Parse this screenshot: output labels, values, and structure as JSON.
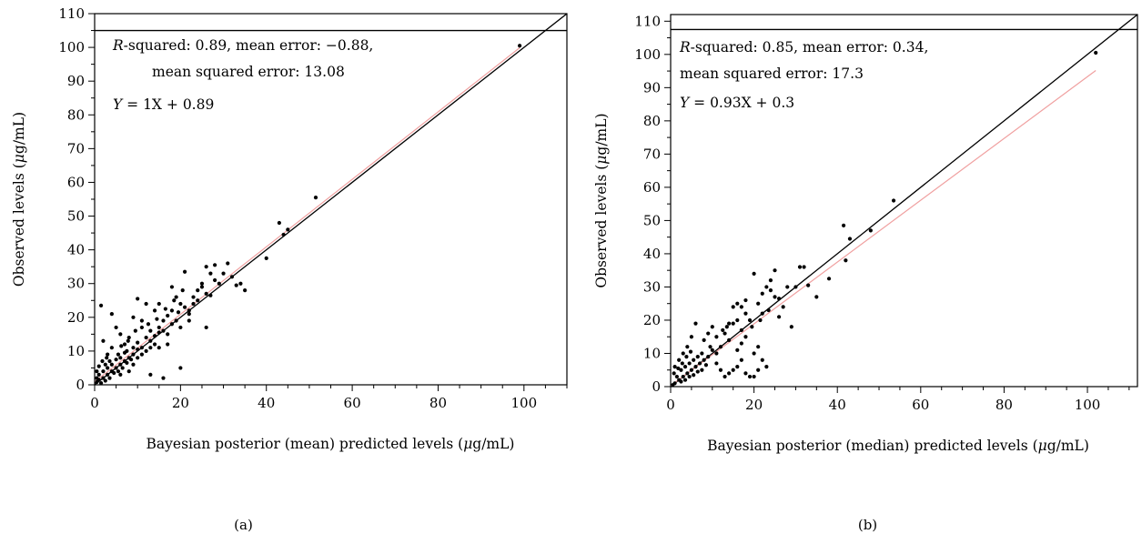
{
  "chart_data": [
    {
      "type": "scatter",
      "panel_label": "(a)",
      "xlabel": "Bayesian posterior (mean) predicted levels (μg/mL)",
      "ylabel": "Observed levels (μg/mL)",
      "xlim": [
        0,
        110
      ],
      "ylim": [
        0,
        110
      ],
      "x_ticks": [
        0,
        20,
        40,
        60,
        80,
        100
      ],
      "y_ticks": [
        0,
        10,
        20,
        30,
        40,
        50,
        60,
        70,
        80,
        90,
        100,
        110
      ],
      "annotations": {
        "line1": "R-squared: 0.89, mean error: −0.88,",
        "line2": "mean squared error: 13.08",
        "equation": "Y = 1X + 0.89"
      },
      "identity_line": {
        "slope": 1,
        "intercept": 0,
        "color": "#000000"
      },
      "fit_line": {
        "slope": 1,
        "intercept": 0.89,
        "color": "#f0a0a0"
      },
      "ref_hline": 105,
      "point_color": "#000000",
      "points": [
        [
          99,
          100.5
        ],
        [
          51.5,
          55.5
        ],
        [
          43,
          48
        ],
        [
          45,
          46
        ],
        [
          44,
          44.5
        ],
        [
          40,
          37.5
        ],
        [
          32,
          32
        ],
        [
          33,
          29.5
        ],
        [
          34,
          30
        ],
        [
          35,
          28
        ],
        [
          31,
          36
        ],
        [
          28,
          35.5
        ],
        [
          26,
          35
        ],
        [
          27,
          33
        ],
        [
          21,
          33.5
        ],
        [
          25,
          30
        ],
        [
          24,
          28
        ],
        [
          27,
          26.5
        ],
        [
          26,
          17
        ],
        [
          23,
          24
        ],
        [
          22,
          22
        ],
        [
          20,
          24
        ],
        [
          22,
          21
        ],
        [
          18,
          22
        ],
        [
          17,
          20.5
        ],
        [
          18,
          18
        ],
        [
          19,
          19
        ],
        [
          16,
          19
        ],
        [
          15,
          17
        ],
        [
          17,
          15
        ],
        [
          14,
          14.5
        ],
        [
          15,
          15.5
        ],
        [
          13,
          16
        ],
        [
          12,
          14
        ],
        [
          13,
          11
        ],
        [
          11,
          11
        ],
        [
          10,
          12.5
        ],
        [
          12,
          10
        ],
        [
          9,
          9
        ],
        [
          10,
          10.5
        ],
        [
          8,
          8
        ],
        [
          9,
          11
        ],
        [
          7,
          9.5
        ],
        [
          7,
          7
        ],
        [
          6,
          8
        ],
        [
          6,
          6
        ],
        [
          5,
          7.5
        ],
        [
          5,
          5
        ],
        [
          4,
          6
        ],
        [
          4,
          4
        ],
        [
          3,
          5
        ],
        [
          3,
          3
        ],
        [
          2,
          4
        ],
        [
          2,
          2
        ],
        [
          1,
          3
        ],
        [
          1,
          1.5
        ],
        [
          0.5,
          2
        ],
        [
          0.5,
          0.8
        ],
        [
          1.5,
          0.5
        ],
        [
          2.5,
          1.2
        ],
        [
          3.5,
          2
        ],
        [
          4.5,
          3.5
        ],
        [
          5.5,
          4
        ],
        [
          6.5,
          5
        ],
        [
          7.5,
          6.5
        ],
        [
          8.5,
          7.5
        ],
        [
          1.5,
          23.5
        ],
        [
          2,
          13
        ],
        [
          4,
          21
        ],
        [
          5,
          17
        ],
        [
          6,
          15
        ],
        [
          7,
          12
        ],
        [
          10,
          25.5
        ],
        [
          9,
          20
        ],
        [
          11,
          19
        ],
        [
          16,
          2
        ],
        [
          13,
          3
        ],
        [
          20,
          5
        ],
        [
          15,
          24
        ],
        [
          14,
          22
        ],
        [
          8,
          14
        ],
        [
          11,
          17
        ],
        [
          12,
          24
        ],
        [
          18,
          29
        ],
        [
          19,
          26
        ],
        [
          24,
          25
        ],
        [
          26,
          27
        ],
        [
          29,
          30
        ],
        [
          22,
          19
        ],
        [
          20,
          17
        ],
        [
          17,
          12
        ],
        [
          15,
          11
        ],
        [
          3,
          9
        ],
        [
          4,
          11
        ],
        [
          6,
          3
        ],
        [
          8,
          4
        ],
        [
          9,
          6
        ],
        [
          10,
          8
        ],
        [
          11,
          9
        ],
        [
          13,
          13
        ],
        [
          14,
          12
        ],
        [
          16,
          16
        ],
        [
          2.5,
          6
        ],
        [
          3.5,
          7
        ],
        [
          5.5,
          9
        ],
        [
          7.5,
          10
        ],
        [
          1,
          5.5
        ],
        [
          0.5,
          4
        ],
        [
          1.8,
          7
        ],
        [
          2.8,
          8
        ],
        [
          6.2,
          11.5
        ],
        [
          7.8,
          13
        ],
        [
          9.5,
          16
        ],
        [
          12.5,
          18
        ],
        [
          14.5,
          19.5
        ],
        [
          19.5,
          21.5
        ],
        [
          21,
          23
        ],
        [
          23,
          26
        ],
        [
          25,
          29
        ],
        [
          28,
          31
        ],
        [
          30,
          33
        ],
        [
          20.5,
          28
        ],
        [
          18.5,
          25
        ],
        [
          16.5,
          22.5
        ]
      ]
    },
    {
      "type": "scatter",
      "panel_label": "(b)",
      "xlabel": "Bayesian posterior (median) predicted levels (μg/mL)",
      "ylabel": "Observed levels (μg/mL)",
      "xlim": [
        0,
        112
      ],
      "ylim": [
        0,
        112
      ],
      "x_ticks": [
        0,
        20,
        40,
        60,
        80,
        100
      ],
      "y_ticks": [
        0,
        10,
        20,
        30,
        40,
        50,
        60,
        70,
        80,
        90,
        100,
        110
      ],
      "annotations": {
        "line1": "R-squared: 0.85, mean error: 0.34,",
        "line2": "mean squared error: 17.3",
        "equation": "Y = 0.93X + 0.3"
      },
      "identity_line": {
        "slope": 1,
        "intercept": 0,
        "color": "#000000"
      },
      "fit_line": {
        "slope": 0.93,
        "intercept": 0.3,
        "color": "#f0a0a0"
      },
      "ref_hline": 107.5,
      "point_color": "#000000",
      "points": [
        [
          102,
          100.5
        ],
        [
          53.5,
          56
        ],
        [
          48,
          47
        ],
        [
          43,
          44.5
        ],
        [
          41.5,
          48.5
        ],
        [
          42,
          38
        ],
        [
          38,
          32.5
        ],
        [
          32,
          36
        ],
        [
          31,
          36
        ],
        [
          33,
          30.5
        ],
        [
          35,
          27
        ],
        [
          30,
          30
        ],
        [
          29,
          18
        ],
        [
          26,
          21
        ],
        [
          25,
          35
        ],
        [
          24,
          32
        ],
        [
          23,
          30
        ],
        [
          22,
          28
        ],
        [
          20,
          34
        ],
        [
          21,
          25
        ],
        [
          19,
          20
        ],
        [
          18,
          22
        ],
        [
          17,
          24
        ],
        [
          16,
          20
        ],
        [
          15,
          19
        ],
        [
          17,
          17
        ],
        [
          18,
          15
        ],
        [
          14,
          14
        ],
        [
          13,
          16
        ],
        [
          12,
          12
        ],
        [
          11,
          10
        ],
        [
          10,
          11
        ],
        [
          9,
          9
        ],
        [
          8,
          8
        ],
        [
          7,
          7
        ],
        [
          6,
          6
        ],
        [
          5,
          5
        ],
        [
          4,
          4
        ],
        [
          3,
          3
        ],
        [
          2,
          2
        ],
        [
          1,
          1
        ],
        [
          0.5,
          0.5
        ],
        [
          1.5,
          3
        ],
        [
          2.5,
          5
        ],
        [
          3.5,
          6
        ],
        [
          4.5,
          7
        ],
        [
          5.5,
          8
        ],
        [
          6.5,
          9
        ],
        [
          7.5,
          10
        ],
        [
          1,
          6
        ],
        [
          2,
          8
        ],
        [
          3,
          10
        ],
        [
          4,
          12
        ],
        [
          5,
          15
        ],
        [
          6,
          19
        ],
        [
          8,
          14
        ],
        [
          9,
          16
        ],
        [
          10,
          18
        ],
        [
          13,
          3
        ],
        [
          14,
          4
        ],
        [
          15,
          5
        ],
        [
          16,
          6
        ],
        [
          17,
          8
        ],
        [
          18,
          4
        ],
        [
          19,
          3
        ],
        [
          20,
          3
        ],
        [
          21,
          5
        ],
        [
          20,
          10
        ],
        [
          21,
          12
        ],
        [
          22,
          8
        ],
        [
          23,
          6
        ],
        [
          12,
          5
        ],
        [
          11,
          7
        ],
        [
          16,
          11
        ],
        [
          17,
          13
        ],
        [
          14,
          19
        ],
        [
          15,
          24
        ],
        [
          16,
          25
        ],
        [
          18,
          26
        ],
        [
          24,
          29
        ],
        [
          25,
          27
        ],
        [
          27,
          24
        ],
        [
          22,
          22
        ],
        [
          2.5,
          1.5
        ],
        [
          3.5,
          2
        ],
        [
          4.5,
          3
        ],
        [
          5.5,
          3.5
        ],
        [
          6.5,
          4.5
        ],
        [
          7.5,
          5
        ],
        [
          8.5,
          6.5
        ],
        [
          0.8,
          4
        ],
        [
          1.8,
          5.5
        ],
        [
          2.8,
          7
        ],
        [
          3.8,
          9
        ],
        [
          4.8,
          10.5
        ],
        [
          9.5,
          12
        ],
        [
          11,
          15
        ],
        [
          12.5,
          17
        ],
        [
          13.5,
          18
        ],
        [
          19.5,
          18
        ],
        [
          21.5,
          20
        ],
        [
          23.5,
          23
        ],
        [
          26,
          26.5
        ],
        [
          28,
          30
        ]
      ]
    }
  ]
}
